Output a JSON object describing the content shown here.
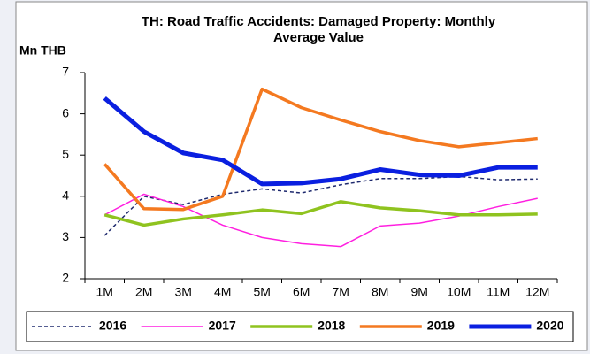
{
  "chart_data": {
    "type": "line",
    "title": "TH: Road Traffic Accidents: Damaged Property: Monthly Average Value",
    "y_label": "Mn THB",
    "categories": [
      "1M",
      "2M",
      "3M",
      "4M",
      "5M",
      "6M",
      "7M",
      "8M",
      "9M",
      "10M",
      "11M",
      "12M"
    ],
    "ylim": [
      2,
      7
    ],
    "yticks": [
      2,
      3,
      4,
      5,
      6,
      7
    ],
    "grid": false,
    "legend": "bottom",
    "series": [
      {
        "name": "2016",
        "color": "#1f2a6e",
        "line_width": 1.5,
        "dashed": true,
        "values": [
          3.05,
          4.0,
          3.8,
          4.05,
          4.18,
          4.08,
          4.28,
          4.43,
          4.43,
          4.48,
          4.4,
          4.42
        ]
      },
      {
        "name": "2017",
        "color": "#ff1fe0",
        "line_width": 1.5,
        "dashed": false,
        "values": [
          3.55,
          4.05,
          3.75,
          3.3,
          3.0,
          2.85,
          2.78,
          3.28,
          3.35,
          3.52,
          3.75,
          3.95
        ]
      },
      {
        "name": "2018",
        "color": "#8fc31f",
        "line_width": 3.5,
        "dashed": false,
        "values": [
          3.55,
          3.3,
          3.45,
          3.55,
          3.67,
          3.58,
          3.87,
          3.72,
          3.65,
          3.55,
          3.55,
          3.57
        ]
      },
      {
        "name": "2019",
        "color": "#f47920",
        "line_width": 3.5,
        "dashed": false,
        "values": [
          4.78,
          3.7,
          3.68,
          4.0,
          6.6,
          6.15,
          5.85,
          5.57,
          5.35,
          5.2,
          5.3,
          5.4
        ]
      },
      {
        "name": "2020",
        "color": "#0a1fe0",
        "line_width": 5,
        "dashed": false,
        "values": [
          6.38,
          5.57,
          5.05,
          4.88,
          4.3,
          4.32,
          4.42,
          4.65,
          4.52,
          4.5,
          4.7,
          4.7
        ]
      }
    ]
  }
}
